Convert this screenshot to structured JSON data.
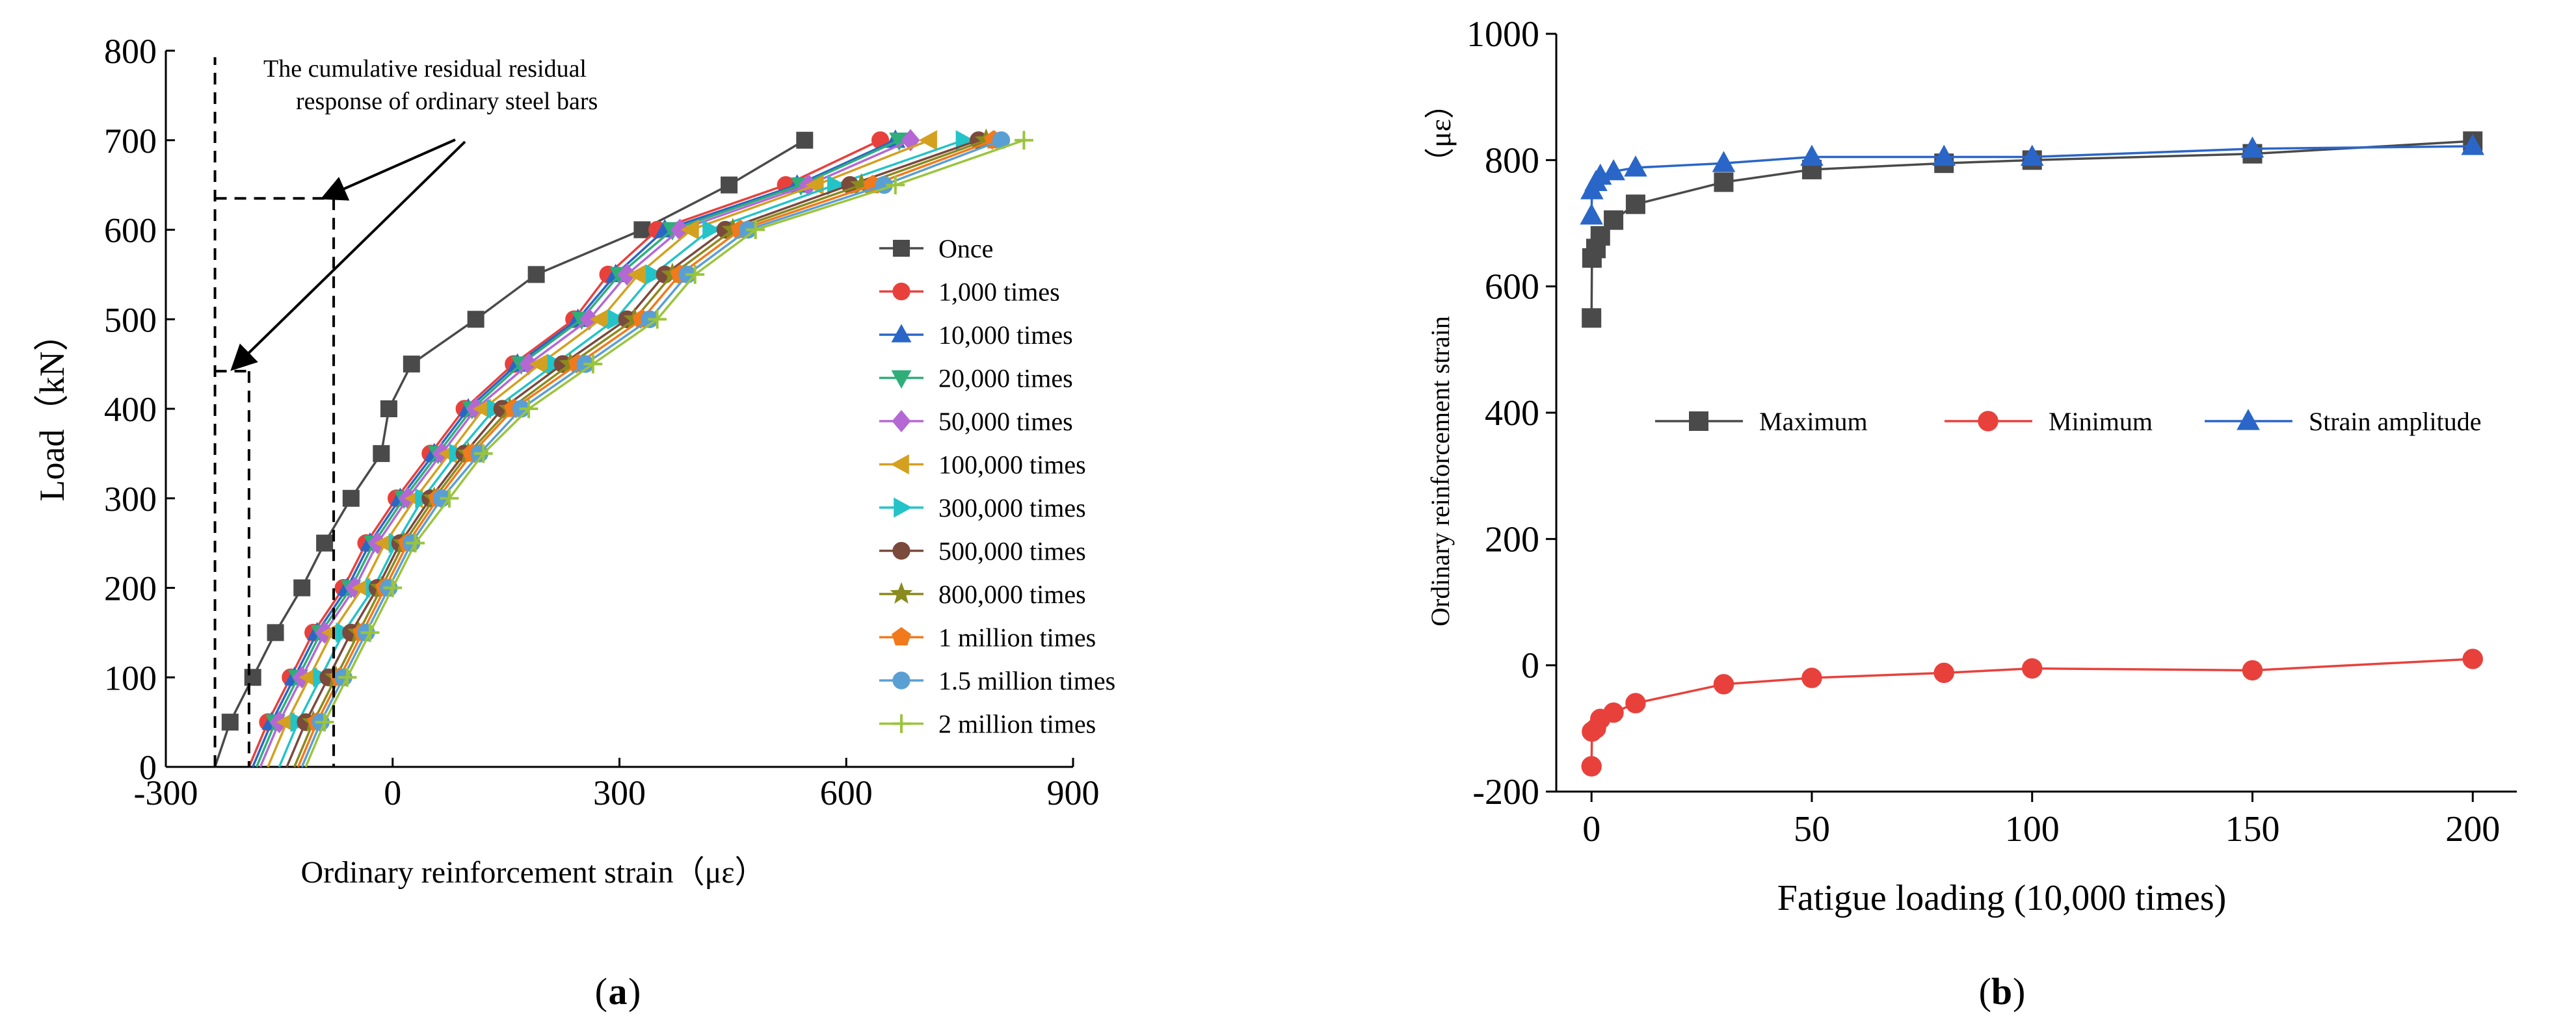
{
  "chart_data": [
    {
      "type": "line",
      "panel_label": "a",
      "xlabel": "Ordinary reinforcement strain（με）",
      "ylabel": "Load（kN）",
      "xlim": [
        -300,
        900
      ],
      "ylim": [
        0,
        800
      ],
      "xticks": [
        "-300",
        "0",
        "300",
        "600",
        "900"
      ],
      "yticks": [
        "0",
        "100",
        "200",
        "300",
        "400",
        "500",
        "600",
        "700",
        "800"
      ],
      "annotation": [
        "The cumulative residual residual",
        "response of ordinary steel bars"
      ],
      "residual_markers": {
        "p1": -235,
        "p2": -190,
        "p3": -78,
        "lower_load": 442,
        "upper_load": 635
      },
      "legend_position": "right",
      "y": [
        0,
        50,
        100,
        150,
        200,
        250,
        300,
        350,
        400,
        450,
        500,
        550,
        600,
        650,
        700
      ],
      "series": [
        {
          "name": "Once",
          "color": "#4a4a4a",
          "marker": "square",
          "x": [
            -235,
            -215,
            -185,
            -155,
            -120,
            -90,
            -55,
            -15,
            -5,
            25,
            110,
            190,
            330,
            445,
            545
          ]
        },
        {
          "name": "1,000 times",
          "color": "#e8413c",
          "marker": "circle",
          "x": [
            -190,
            -165,
            -135,
            -105,
            -65,
            -35,
            5,
            50,
            95,
            160,
            240,
            285,
            350,
            520,
            645
          ]
        },
        {
          "name": "10,000 times",
          "color": "#2a66c8",
          "marker": "triangle-up",
          "x": [
            -185,
            -160,
            -130,
            -100,
            -60,
            -30,
            10,
            55,
            100,
            165,
            245,
            295,
            360,
            535,
            665
          ]
        },
        {
          "name": "20,000 times",
          "color": "#2fae7a",
          "marker": "triangle-down",
          "x": [
            -180,
            -155,
            -125,
            -95,
            -55,
            -25,
            15,
            60,
            105,
            170,
            250,
            300,
            370,
            540,
            670
          ]
        },
        {
          "name": "50,000 times",
          "color": "#b468d4",
          "marker": "diamond",
          "x": [
            -175,
            -150,
            -120,
            -90,
            -50,
            -20,
            20,
            65,
            110,
            180,
            260,
            310,
            380,
            550,
            685
          ]
        },
        {
          "name": "100,000 times",
          "color": "#d4a020",
          "marker": "triangle-left",
          "x": [
            -165,
            -140,
            -110,
            -80,
            -40,
            -10,
            30,
            75,
            120,
            195,
            275,
            325,
            395,
            560,
            710
          ]
        },
        {
          "name": "300,000 times",
          "color": "#24c3c8",
          "marker": "triangle-right",
          "x": [
            -150,
            -125,
            -95,
            -65,
            -25,
            5,
            40,
            85,
            135,
            215,
            295,
            345,
            420,
            585,
            755
          ]
        },
        {
          "name": "500,000 times",
          "color": "#7a4a3c",
          "marker": "circle",
          "x": [
            -140,
            -115,
            -85,
            -55,
            -20,
            10,
            50,
            95,
            145,
            225,
            310,
            360,
            440,
            605,
            775
          ]
        },
        {
          "name": "800,000 times",
          "color": "#8a8a1e",
          "marker": "star",
          "x": [
            -130,
            -105,
            -75,
            -45,
            -15,
            15,
            55,
            100,
            155,
            235,
            320,
            370,
            450,
            620,
            785
          ]
        },
        {
          "name": "1 million times",
          "color": "#f07a1c",
          "marker": "pentagon",
          "x": [
            -125,
            -100,
            -70,
            -40,
            -10,
            20,
            60,
            105,
            160,
            245,
            330,
            380,
            460,
            635,
            795
          ]
        },
        {
          "name": "1.5 million times",
          "color": "#5a9fd4",
          "marker": "circle",
          "x": [
            -120,
            -95,
            -65,
            -35,
            -5,
            25,
            65,
            115,
            170,
            255,
            340,
            390,
            470,
            650,
            805
          ]
        },
        {
          "name": "2 million times",
          "color": "#9ac43c",
          "marker": "plus",
          "x": [
            -115,
            -90,
            -60,
            -30,
            0,
            30,
            75,
            120,
            180,
            265,
            350,
            400,
            480,
            665,
            835
          ]
        }
      ]
    },
    {
      "type": "line",
      "panel_label": "b",
      "xlabel": "Fatigue loading (10,000 times)",
      "ylabel": "Ordinary reinforcement strain",
      "ylabel_unit": "（με）",
      "xlim": [
        -8,
        210
      ],
      "ylim": [
        -200,
        1000
      ],
      "xticks": [
        "0",
        "50",
        "100",
        "150",
        "200"
      ],
      "yticks": [
        "-200",
        "0",
        "200",
        "400",
        "600",
        "800",
        "1000"
      ],
      "legend_position": "center",
      "x": [
        0,
        0.1,
        1,
        2,
        5,
        10,
        30,
        50,
        80,
        100,
        150,
        200
      ],
      "series": [
        {
          "name": "Maximum",
          "color": "#4a4a4a",
          "marker": "square",
          "values": [
            550,
            645,
            660,
            680,
            705,
            730,
            765,
            785,
            795,
            800,
            810,
            830
          ]
        },
        {
          "name": "Minimum",
          "color": "#e8413c",
          "marker": "circle",
          "values": [
            -160,
            -105,
            -100,
            -85,
            -75,
            -60,
            -30,
            -20,
            -12,
            -5,
            -8,
            10
          ]
        },
        {
          "name": "Strain amplitude",
          "color": "#2a66c8",
          "marker": "triangle-up",
          "values": [
            712,
            752,
            765,
            775,
            782,
            788,
            795,
            805,
            805,
            805,
            818,
            822
          ]
        }
      ]
    }
  ]
}
